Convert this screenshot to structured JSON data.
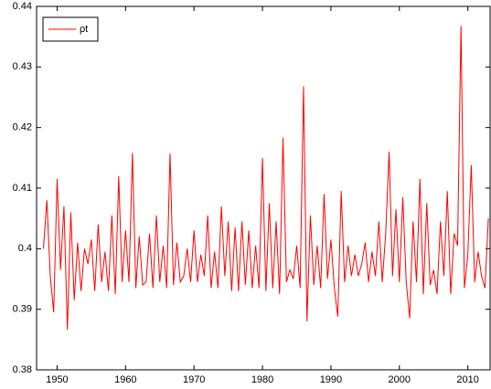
{
  "chart_data": {
    "type": "line",
    "x": [
      1948,
      1948.5,
      1949,
      1949.5,
      1950,
      1950.5,
      1951,
      1951.5,
      1952,
      1952.5,
      1953,
      1953.5,
      1954,
      1954.5,
      1955,
      1955.5,
      1956,
      1956.5,
      1957,
      1957.5,
      1958,
      1958.5,
      1959,
      1959.5,
      1960,
      1960.5,
      1961,
      1961.5,
      1962,
      1962.5,
      1963,
      1963.5,
      1964,
      1964.5,
      1965,
      1965.5,
      1966,
      1966.5,
      1967,
      1967.5,
      1968,
      1968.5,
      1969,
      1969.5,
      1970,
      1970.5,
      1971,
      1971.5,
      1972,
      1972.5,
      1973,
      1973.5,
      1974,
      1974.5,
      1975,
      1975.5,
      1976,
      1976.5,
      1977,
      1977.5,
      1978,
      1978.5,
      1979,
      1979.5,
      1980,
      1980.5,
      1981,
      1981.5,
      1982,
      1982.5,
      1983,
      1983.5,
      1984,
      1984.5,
      1985,
      1985.5,
      1986,
      1986.5,
      1987,
      1987.5,
      1988,
      1988.5,
      1989,
      1989.5,
      1990,
      1990.5,
      1991,
      1991.5,
      1992,
      1992.5,
      1993,
      1993.5,
      1994,
      1994.5,
      1995,
      1995.5,
      1996,
      1996.5,
      1997,
      1997.5,
      1998,
      1998.5,
      1999,
      1999.5,
      2000,
      2000.5,
      2001,
      2001.5,
      2002,
      2002.5,
      2003,
      2003.5,
      2004,
      2004.5,
      2005,
      2005.5,
      2006,
      2006.5,
      2007,
      2007.5,
      2008,
      2008.5,
      2009,
      2009.5,
      2010,
      2010.5,
      2011,
      2011.5,
      2012,
      2012.5,
      2013
    ],
    "series": [
      {
        "name": "ρt",
        "color": "#ff0000",
        "values": [
          0.4,
          0.408,
          0.3955,
          0.3895,
          0.4115,
          0.3965,
          0.407,
          0.3866,
          0.406,
          0.3915,
          0.401,
          0.393,
          0.4,
          0.3975,
          0.4015,
          0.393,
          0.404,
          0.3945,
          0.3995,
          0.393,
          0.4055,
          0.3925,
          0.412,
          0.3945,
          0.403,
          0.3945,
          0.4158,
          0.3935,
          0.402,
          0.394,
          0.3945,
          0.4025,
          0.3935,
          0.4055,
          0.3945,
          0.4005,
          0.3935,
          0.4157,
          0.394,
          0.401,
          0.3945,
          0.3955,
          0.4,
          0.3945,
          0.403,
          0.3945,
          0.399,
          0.3955,
          0.4055,
          0.3935,
          0.3995,
          0.3935,
          0.407,
          0.3955,
          0.4045,
          0.393,
          0.4035,
          0.393,
          0.4045,
          0.394,
          0.403,
          0.3935,
          0.4005,
          0.3935,
          0.415,
          0.393,
          0.4075,
          0.3935,
          0.4045,
          0.3925,
          0.4183,
          0.3945,
          0.3965,
          0.395,
          0.4005,
          0.3935,
          0.4268,
          0.388,
          0.4055,
          0.394,
          0.4005,
          0.3935,
          0.409,
          0.395,
          0.4015,
          0.3935,
          0.3888,
          0.4095,
          0.3945,
          0.4005,
          0.3955,
          0.399,
          0.3955,
          0.3975,
          0.401,
          0.3945,
          0.3995,
          0.3955,
          0.4045,
          0.3945,
          0.4025,
          0.416,
          0.3955,
          0.4065,
          0.3945,
          0.4085,
          0.3945,
          0.3885,
          0.4045,
          0.3945,
          0.4115,
          0.3925,
          0.4075,
          0.394,
          0.3965,
          0.3925,
          0.4045,
          0.3955,
          0.4095,
          0.3925,
          0.4025,
          0.4005,
          0.4368,
          0.3935,
          0.399,
          0.4138,
          0.3945,
          0.3995,
          0.3955,
          0.3935,
          0.405
        ]
      }
    ],
    "xlim": [
      1947,
      2013.25
    ],
    "xticks": [
      1950,
      1960,
      1970,
      1980,
      1990,
      2000,
      2010
    ],
    "ylim": [
      0.38,
      0.44
    ],
    "yticks": [
      0.38,
      0.39,
      0.4,
      0.41,
      0.42,
      0.43,
      0.44
    ],
    "legend": "upper-left",
    "grid": false
  }
}
